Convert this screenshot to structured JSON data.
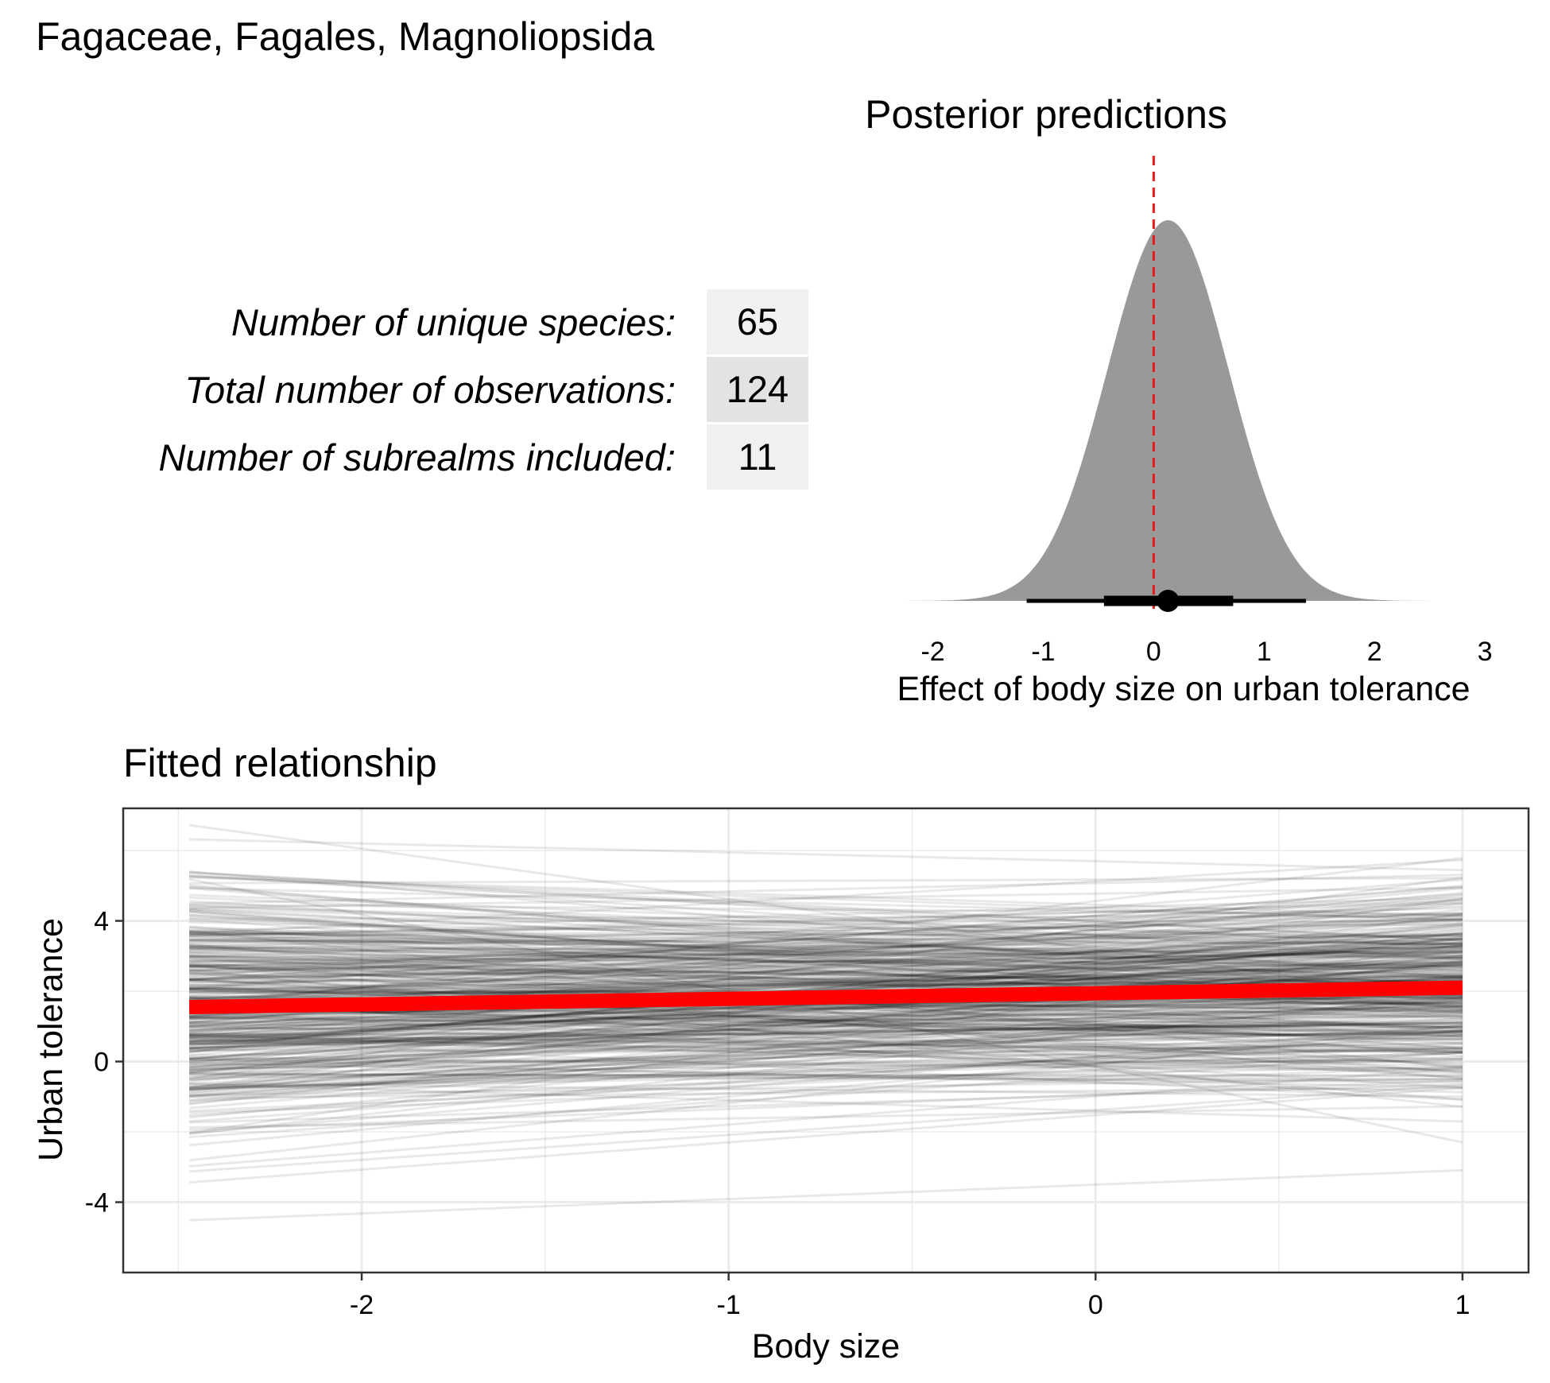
{
  "figure_title": "Fagaceae, Fagales, Magnoliopsida",
  "stats": [
    {
      "label": "Number of unique species:",
      "value": "65"
    },
    {
      "label": "Total number of observations:",
      "value": "124"
    },
    {
      "label": "Number of subrealms included:",
      "value": "11"
    }
  ],
  "colors": {
    "density_fill": "#999999",
    "reference_line": "#e41a1c",
    "fit_line": "#ff0000",
    "draws": "#000000",
    "table_cell_light": "#f0f0f0",
    "table_cell_dark": "#e3e3e3",
    "gridline": "#ebebeb"
  },
  "chart_data": [
    {
      "type": "area",
      "title": "Posterior predictions",
      "xlabel": "Effect of body size on urban tolerance",
      "ylabel": "",
      "xlim": [
        -2.4,
        3.1
      ],
      "x_ticks": [
        -2,
        -1,
        0,
        1,
        2,
        3
      ],
      "x_tick_labels": [
        "-2",
        "-1",
        "0",
        "1",
        "2",
        "3"
      ],
      "density": {
        "mean": 0.13,
        "sd": 0.55,
        "min": -2.35,
        "max": 2.6
      },
      "reference_line_x": 0,
      "point_estimate": 0.13,
      "interval_66": [
        -0.45,
        0.72
      ],
      "interval_95": [
        -1.15,
        1.38
      ],
      "grid": false,
      "legend": "none"
    },
    {
      "type": "line",
      "title": "Fitted relationship",
      "xlabel": "Body size",
      "ylabel": "Urban tolerance",
      "xlim": [
        -2.65,
        1.18
      ],
      "ylim": [
        -6.0,
        7.2
      ],
      "x_ticks": [
        -2,
        -1,
        0,
        1
      ],
      "x_tick_labels": [
        "-2",
        "-1",
        "0",
        "1"
      ],
      "y_ticks": [
        -4,
        0,
        4
      ],
      "y_tick_labels": [
        "-4",
        "0",
        "4"
      ],
      "x_range": [
        -2.47,
        1.0
      ],
      "fit_line": {
        "x": [
          -2.47,
          1.0
        ],
        "y": [
          1.55,
          2.1
        ]
      },
      "posterior_draws": {
        "count": 400,
        "intercept_mean": 1.95,
        "intercept_sd": 1.35,
        "slope_mean": 0.15,
        "slope_sd": 0.55
      },
      "grid": true,
      "legend": "none"
    }
  ]
}
